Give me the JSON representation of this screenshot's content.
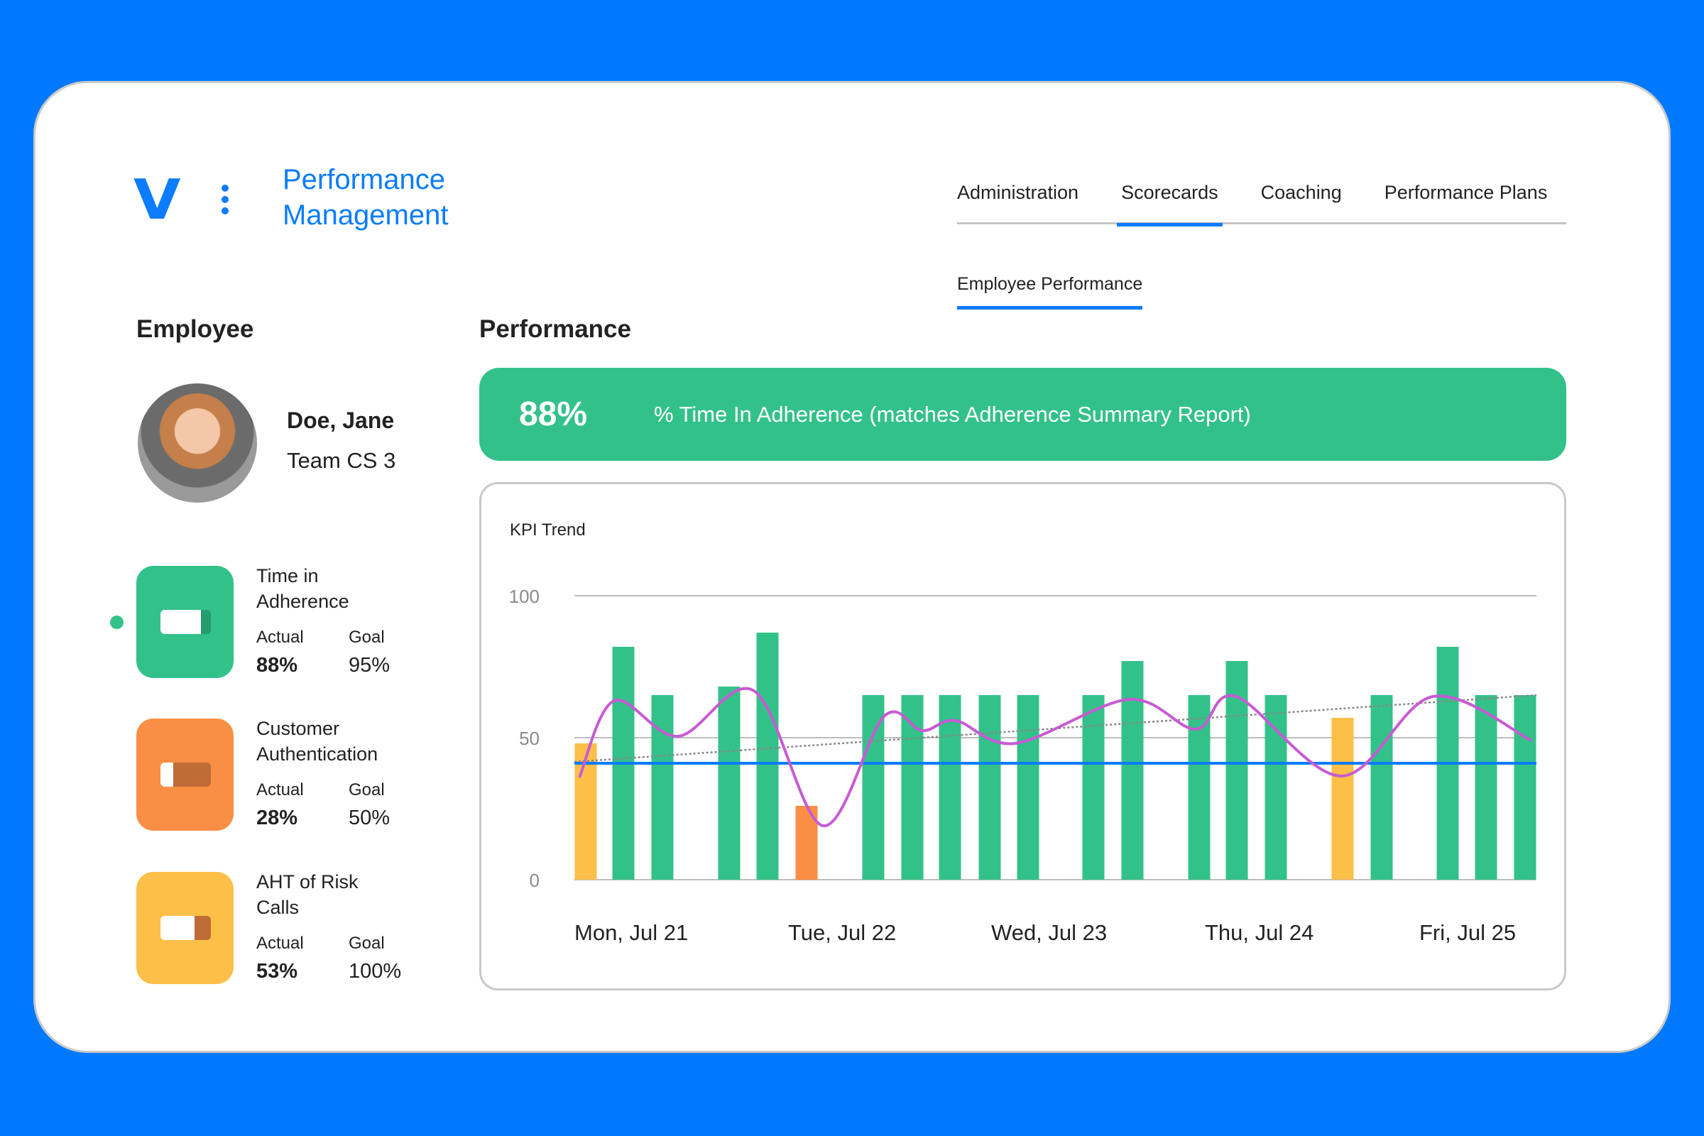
{
  "app": {
    "logo": "V",
    "title_line1": "Performance",
    "title_line2": "Management"
  },
  "nav": {
    "tabs": [
      {
        "label": "Administration",
        "active": false
      },
      {
        "label": "Scorecards",
        "active": true
      },
      {
        "label": "Coaching",
        "active": false
      },
      {
        "label": "Performance Plans",
        "active": false
      }
    ],
    "subtab": "Employee Performance"
  },
  "employee": {
    "heading": "Employee",
    "name": "Doe, Jane",
    "team": "Team CS 3"
  },
  "kpis": [
    {
      "title_line1": "Time in",
      "title_line2": "Adherence",
      "actual_label": "Actual",
      "goal_label": "Goal",
      "actual": "88%",
      "goal": "95%",
      "color": "#33C18A",
      "dark": "#259C6D",
      "indicator_fill": 0.8,
      "selected": true
    },
    {
      "title_line1": "Customer",
      "title_line2": "Authentication",
      "actual_label": "Actual",
      "goal_label": "Goal",
      "actual": "28%",
      "goal": "50%",
      "color": "#F98E45",
      "dark": "#BE6C37",
      "indicator_fill": 0.26,
      "selected": false
    },
    {
      "title_line1": "AHT of Risk",
      "title_line2": "Calls",
      "actual_label": "Actual",
      "goal_label": "Goal",
      "actual": "53%",
      "goal": "100%",
      "color": "#FCBF47",
      "dark": "#BE6C37",
      "indicator_fill": 0.67,
      "selected": false
    }
  ],
  "performance": {
    "heading": "Performance",
    "banner_value": "88%",
    "banner_label": "% Time In Adherence (matches Adherence Summary Report)",
    "banner_color": "#33C18A"
  },
  "chart_data": {
    "type": "bar",
    "title": "KPI Trend",
    "ylim": [
      0,
      100
    ],
    "yticks": [
      "0",
      "50",
      "100"
    ],
    "categories": [
      "Mon, Jul 21",
      "Tue, Jul 22",
      "Wed, Jul 23",
      "Thu, Jul 24",
      "Fri, Jul 25"
    ],
    "grid": true,
    "bars": [
      {
        "value": 48,
        "color": "#FCBF47"
      },
      {
        "value": 82,
        "color": "#33C18A"
      },
      {
        "value": 65,
        "color": "#33C18A"
      },
      {
        "value": 68,
        "color": "#33C18A"
      },
      {
        "value": 87,
        "color": "#33C18A"
      },
      {
        "value": 26,
        "color": "#F98E45"
      },
      {
        "value": 65,
        "color": "#33C18A"
      },
      {
        "value": 65,
        "color": "#33C18A"
      },
      {
        "value": 65,
        "color": "#33C18A"
      },
      {
        "value": 65,
        "color": "#33C18A"
      },
      {
        "value": 65,
        "color": "#33C18A"
      },
      {
        "value": 65,
        "color": "#33C18A"
      },
      {
        "value": 77,
        "color": "#33C18A"
      },
      {
        "value": 65,
        "color": "#33C18A"
      },
      {
        "value": 77,
        "color": "#33C18A"
      },
      {
        "value": 65,
        "color": "#33C18A"
      },
      {
        "value": 57,
        "color": "#FCBF47"
      },
      {
        "value": 65,
        "color": "#33C18A"
      },
      {
        "value": 82,
        "color": "#33C18A"
      },
      {
        "value": 65,
        "color": "#33C18A"
      },
      {
        "value": 65,
        "color": "#33C18A"
      }
    ],
    "smoothed_line": {
      "color": "#C75BD2",
      "values": [
        36,
        63,
        50.5,
        66.5,
        19,
        57.5,
        52.5,
        56,
        48,
        63.5,
        53,
        64.5,
        36.5,
        64.5,
        49
      ]
    },
    "target_line": {
      "value": 41,
      "color": "#0A7CFF"
    },
    "trend_line": {
      "start": 41.5,
      "end": 65,
      "style": "dotted",
      "color": "#888888"
    }
  }
}
